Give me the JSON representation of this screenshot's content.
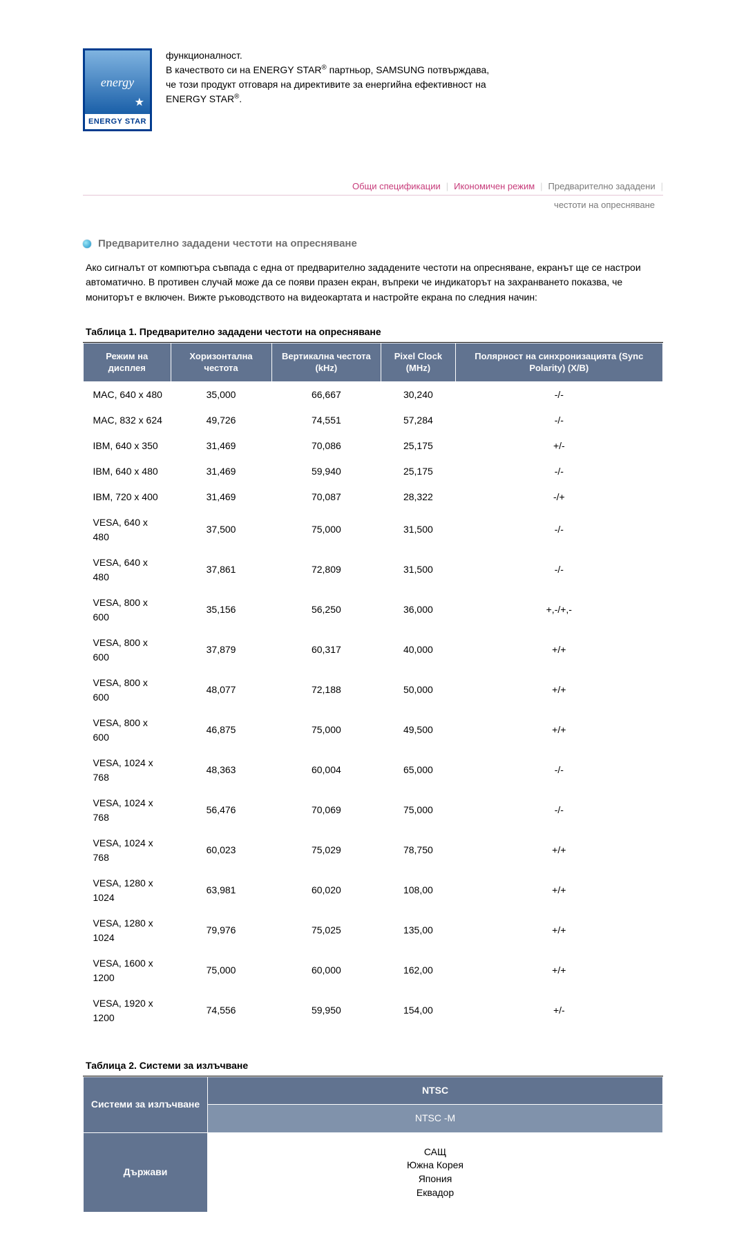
{
  "logo": {
    "script": "energy",
    "label": "ENERGY STAR"
  },
  "top_paragraph_line1": "функционалност.",
  "top_paragraph_line2a": "В качеството си на ENERGY STAR",
  "top_paragraph_line2b": " партньор, SAMSUNG потвърждава,",
  "top_paragraph_line3": "че този продукт отговаря на директивите за енергийна ефективност на",
  "top_paragraph_line4a": "ENERGY STAR",
  "top_paragraph_line4b": ".",
  "tabs": {
    "t1": "Общи спецификации",
    "t2": "Икономичен режим",
    "t3": "Предварително зададени",
    "t3_line2": "честоти на опресняване"
  },
  "section": {
    "title": "Предварително зададени честоти на опресняване",
    "desc": "Ако сигналът от компютъра съвпада с една от предварително зададените честоти на опресняване, екранът ще се настрои автоматично. В противен случай може да се появи празен екран, въпреки че индикаторът на захранването показва, че мониторът е включен. Вижте ръководството на видеокартата и настройте екрана по следния начин:"
  },
  "table1": {
    "caption": "Таблица 1. Предварително зададени честоти на опресняване",
    "headers": {
      "mode": "Режим на дисплея",
      "hfreq": "Хоризонтална честота",
      "vfreq": "Вертикална честота (kHz)",
      "pixel": "Pixel Clock (MHz)",
      "sync": "Полярност на синхронизацията (Sync Polarity) (X/B)"
    },
    "rows": [
      [
        "MAC, 640 x 480",
        "35,000",
        "66,667",
        "30,240",
        "-/-"
      ],
      [
        "MAC, 832 x 624",
        "49,726",
        "74,551",
        "57,284",
        "-/-"
      ],
      [
        "IBM, 640 x 350",
        "31,469",
        "70,086",
        "25,175",
        "+/-"
      ],
      [
        "IBM, 640 x 480",
        "31,469",
        "59,940",
        "25,175",
        "-/-"
      ],
      [
        "IBM, 720 x 400",
        "31,469",
        "70,087",
        "28,322",
        "-/+"
      ],
      [
        "VESA, 640 x 480",
        "37,500",
        "75,000",
        "31,500",
        "-/-"
      ],
      [
        "VESA, 640 x 480",
        "37,861",
        "72,809",
        "31,500",
        "-/-"
      ],
      [
        "VESA, 800 x 600",
        "35,156",
        "56,250",
        "36,000",
        "+,-/+,-"
      ],
      [
        "VESA, 800 x 600",
        "37,879",
        "60,317",
        "40,000",
        "+/+"
      ],
      [
        "VESA, 800 x 600",
        "48,077",
        "72,188",
        "50,000",
        "+/+"
      ],
      [
        "VESA, 800 x 600",
        "46,875",
        "75,000",
        "49,500",
        "+/+"
      ],
      [
        "VESA, 1024 x 768",
        "48,363",
        "60,004",
        "65,000",
        "-/-"
      ],
      [
        "VESA, 1024 x 768",
        "56,476",
        "70,069",
        "75,000",
        "-/-"
      ],
      [
        "VESA, 1024 x 768",
        "60,023",
        "75,029",
        "78,750",
        "+/+"
      ],
      [
        "VESA, 1280 x 1024",
        "63,981",
        "60,020",
        "108,00",
        "+/+"
      ],
      [
        "VESA, 1280 x 1024",
        "79,976",
        "75,025",
        "135,00",
        "+/+"
      ],
      [
        "VESA, 1600 x 1200",
        "75,000",
        "60,000",
        "162,00",
        "+/+"
      ],
      [
        "VESA, 1920 x 1200",
        "74,556",
        "59,950",
        "154,00",
        "+/-"
      ]
    ]
  },
  "table2": {
    "caption": "Таблица 2. Системи за излъчване",
    "row_head1": "Системи за излъчване",
    "row_head2": "Държави",
    "main1": "NTSC",
    "sub1": "NTSC -M",
    "countries": "САЩ\nЮжна Корея\nЯпония\nЕквадор"
  }
}
